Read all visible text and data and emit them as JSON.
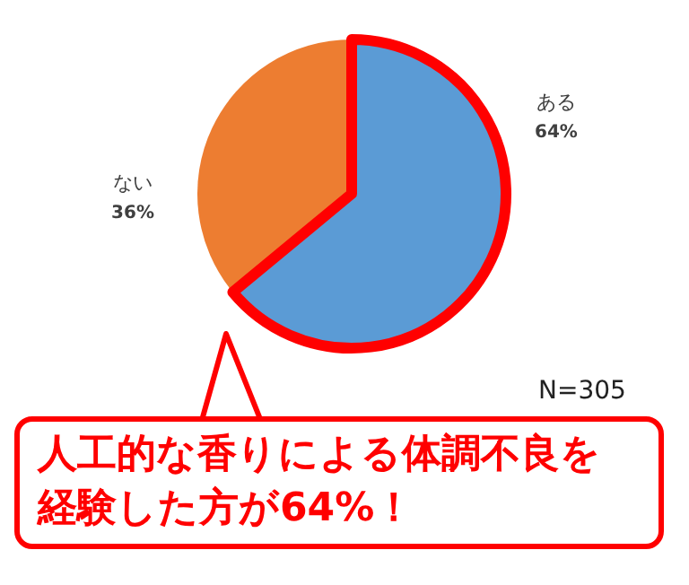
{
  "chart_data": {
    "type": "pie",
    "categories": [
      "ある",
      "ない"
    ],
    "values": [
      64,
      36
    ],
    "colors": [
      "#5b9bd5",
      "#ed7d31"
    ],
    "value_labels": [
      "64%",
      "36%"
    ],
    "annotations": [
      "N=305",
      "人工的な香りによる体調不良を経験した方が64%！"
    ]
  }
}
